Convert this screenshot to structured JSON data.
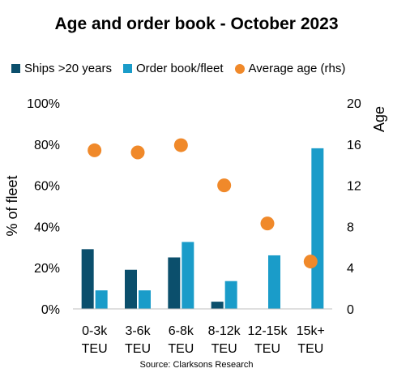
{
  "chart_data": {
    "type": "bar",
    "title": "Age and order book - October 2023",
    "source": "Source: Clarksons Research",
    "categories": [
      [
        "0-3k",
        "TEU"
      ],
      [
        "3-6k",
        "TEU"
      ],
      [
        "6-8k",
        "TEU"
      ],
      [
        "8-12k",
        "TEU"
      ],
      [
        "12-15k",
        "TEU"
      ],
      [
        "15k+",
        "TEU"
      ]
    ],
    "ylabel": "% of fleet",
    "y2label": "Age",
    "ylim": [
      0,
      100
    ],
    "y2lim": [
      0,
      20
    ],
    "yticks": [
      "0%",
      "20%",
      "40%",
      "60%",
      "80%",
      "100%"
    ],
    "y2ticks": [
      "0",
      "4",
      "8",
      "12",
      "16",
      "20"
    ],
    "legend_position": "top",
    "grid": false,
    "series": [
      {
        "name": "Ships >20 years",
        "type": "bar",
        "axis": "left",
        "color": "#0b4f6c",
        "values": [
          29,
          19,
          25,
          3.5,
          0,
          0
        ]
      },
      {
        "name": "Order book/fleet",
        "type": "bar",
        "axis": "left",
        "color": "#1a9cc9",
        "values": [
          9,
          9,
          32.5,
          13.5,
          26,
          78
        ]
      },
      {
        "name": "Average age (rhs)",
        "type": "scatter",
        "axis": "right",
        "color": "#f0892a",
        "values": [
          15.4,
          15.2,
          15.9,
          12,
          8.3,
          4.6
        ]
      }
    ]
  }
}
